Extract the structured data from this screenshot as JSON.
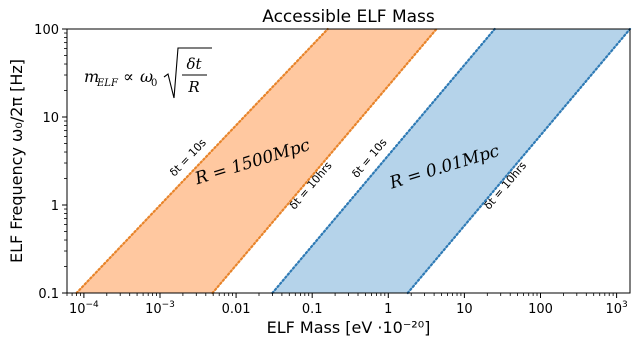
{
  "chart_data": {
    "type": "area",
    "title": "Accessible ELF Mass",
    "xlabel": "ELF Mass [eV ·10⁻²⁰]",
    "ylabel": "ELF Frequency ω₀/2π [Hz]",
    "xscale": "log",
    "yscale": "log",
    "xlim": [
      6e-05,
      1500
    ],
    "ylim": [
      0.1,
      100
    ],
    "x_ticks": [
      {
        "value": 0.0001,
        "base": "10",
        "exp": "−4"
      },
      {
        "value": 0.001,
        "base": "10",
        "exp": "−3"
      },
      {
        "value": 0.01,
        "base": "0.01",
        "exp": ""
      },
      {
        "value": 0.1,
        "base": "0.1",
        "exp": ""
      },
      {
        "value": 1,
        "base": "1",
        "exp": ""
      },
      {
        "value": 10,
        "base": "10",
        "exp": ""
      },
      {
        "value": 100,
        "base": "100",
        "exp": ""
      },
      {
        "value": 1000,
        "base": "10",
        "exp": "3"
      }
    ],
    "y_ticks": [
      {
        "value": 0.1,
        "label": "0.1"
      },
      {
        "value": 1,
        "label": "1"
      },
      {
        "value": 10,
        "label": "10"
      },
      {
        "value": 100,
        "label": "100"
      }
    ],
    "series": [
      {
        "name": "R = 1500Mpc",
        "color": "#ffc8a0",
        "edge_color": "#e8842a",
        "lines": [
          {
            "label": "δt = 10s",
            "points": [
              [
                8e-05,
                0.1
              ],
              [
                0.16,
                100
              ]
            ]
          },
          {
            "label": "δt = 10hrs",
            "points": [
              [
                0.0049,
                0.1
              ],
              [
                4.3,
                100
              ]
            ]
          }
        ]
      },
      {
        "name": "R = 0.01Mpc",
        "color": "#b5d3ea",
        "edge_color": "#2e7ab5",
        "lines": [
          {
            "label": "δt = 10s",
            "points": [
              [
                0.03,
                0.1
              ],
              [
                25,
                100
              ]
            ]
          },
          {
            "label": "δt = 10hrs",
            "points": [
              [
                1.8,
                0.1
              ],
              [
                1500,
                100
              ]
            ]
          }
        ]
      }
    ],
    "annotations": {
      "formula": {
        "lhs_main": "m",
        "lhs_sub": "ELF",
        "propto": "∝",
        "omega": "ω",
        "omega_sub": "0",
        "numerator": "δt",
        "denominator": "R"
      },
      "region_labels": [
        {
          "text": "R = 1500Mpc",
          "series": 0
        },
        {
          "text": "R = 0.01Mpc",
          "series": 1
        }
      ]
    },
    "grid": false,
    "legend": "none"
  }
}
